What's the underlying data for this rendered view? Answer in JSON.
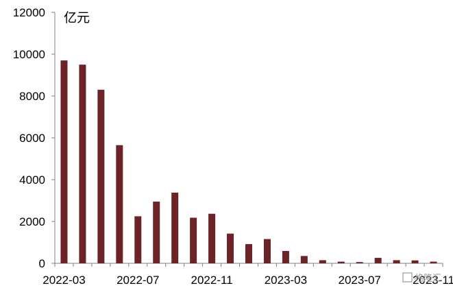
{
  "chart_data": {
    "type": "bar",
    "title": "",
    "xlabel": "",
    "ylabel": "亿元",
    "ylim": [
      0,
      12000
    ],
    "yticks": [
      0,
      2000,
      4000,
      6000,
      8000,
      10000,
      12000
    ],
    "categories": [
      "2022-03",
      "2022-04",
      "2022-05",
      "2022-06",
      "2022-07",
      "2022-08",
      "2022-09",
      "2022-10",
      "2022-11",
      "2022-12",
      "2023-01",
      "2023-02",
      "2023-03",
      "2023-04",
      "2023-05",
      "2023-06",
      "2023-07",
      "2023-08",
      "2023-09",
      "2023-10",
      "2023-11"
    ],
    "xtick_labels": [
      "2022-03",
      "2022-07",
      "2022-11",
      "2023-03",
      "2023-07",
      "2023-11"
    ],
    "values": [
      9700,
      9500,
      8300,
      5650,
      2250,
      2950,
      3380,
      2180,
      2370,
      1420,
      920,
      1160,
      590,
      350,
      150,
      80,
      60,
      260,
      150,
      140,
      80
    ],
    "bar_color": "#6b2327",
    "grid": false,
    "legend": "none"
  },
  "watermark": "格隆汇"
}
